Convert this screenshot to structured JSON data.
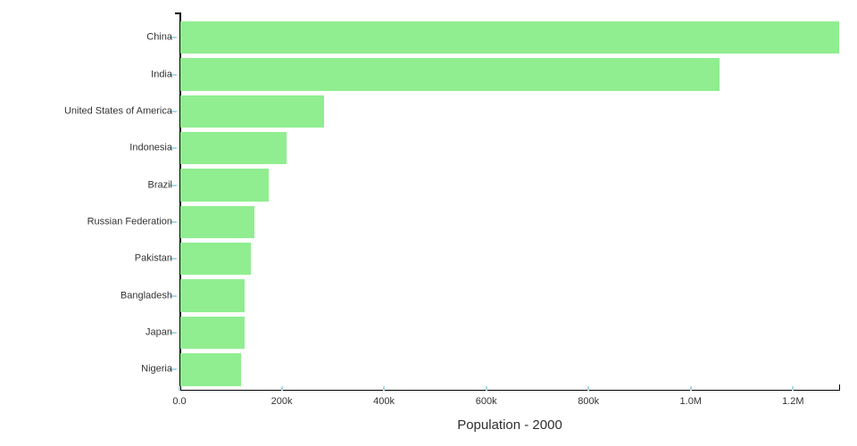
{
  "chart_data": {
    "type": "bar",
    "orientation": "horizontal",
    "title": "Population - 2000",
    "xlabel": "Population - 2000",
    "ylabel": "",
    "categories": [
      "China",
      "India",
      "United States of America",
      "Indonesia",
      "Brazil",
      "Russian Federation",
      "Pakistan",
      "Bangladesh",
      "Japan",
      "Nigeria"
    ],
    "values": [
      1290000,
      1056000,
      282000,
      210000,
      174000,
      146000,
      139000,
      127500,
      127000,
      120000
    ],
    "value_unit": "thousands",
    "xlim": [
      0,
      1292000
    ],
    "x_ticks": [
      {
        "value": 0,
        "label": "0.0"
      },
      {
        "value": 200000,
        "label": "200k"
      },
      {
        "value": 400000,
        "label": "400k"
      },
      {
        "value": 600000,
        "label": "600k"
      },
      {
        "value": 800000,
        "label": "800k"
      },
      {
        "value": 1000000,
        "label": "1.0M"
      },
      {
        "value": 1200000,
        "label": "1.2M"
      }
    ],
    "grid": false,
    "legend": null,
    "colors": {
      "bar": "#90EE90",
      "tick": "#ADD8E6",
      "axis": "#000000",
      "label": "#333333",
      "title": "#2e2e2e",
      "background": "#ffffff"
    }
  }
}
